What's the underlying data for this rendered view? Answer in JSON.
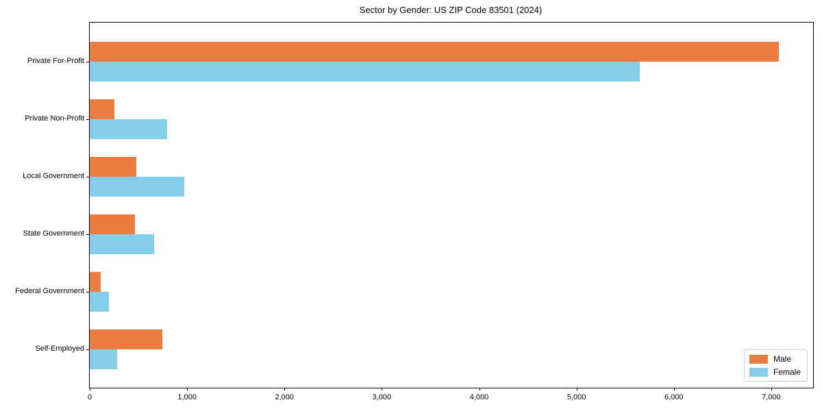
{
  "title": "Sector by Gender: US ZIP Code 83501 (2024)",
  "chart_data": {
    "type": "bar",
    "orientation": "horizontal",
    "title": "Sector by Gender: US ZIP Code 83501 (2024)",
    "categories": [
      "Private For-Profit",
      "Private Non-Profit",
      "Local Government",
      "State Government",
      "Federal Government",
      "Self-Employed"
    ],
    "series": [
      {
        "name": "Male",
        "color": "#E97C3E",
        "values": [
          7075,
          250,
          475,
          465,
          115,
          745
        ]
      },
      {
        "name": "Female",
        "color": "#85CDE9",
        "values": [
          5650,
          795,
          970,
          660,
          195,
          280
        ]
      }
    ],
    "xlabel": "",
    "ylabel": "",
    "xlim": [
      0,
      7430
    ],
    "xticks": [
      0,
      1000,
      2000,
      3000,
      4000,
      5000,
      6000,
      7000
    ],
    "xtick_labels": [
      "0",
      "1,000",
      "2,000",
      "3,000",
      "4,000",
      "5,000",
      "6,000",
      "7,000"
    ],
    "grid": false,
    "legend_position": "lower right",
    "legend_items": [
      {
        "label": "Male"
      },
      {
        "label": "Female"
      }
    ]
  }
}
